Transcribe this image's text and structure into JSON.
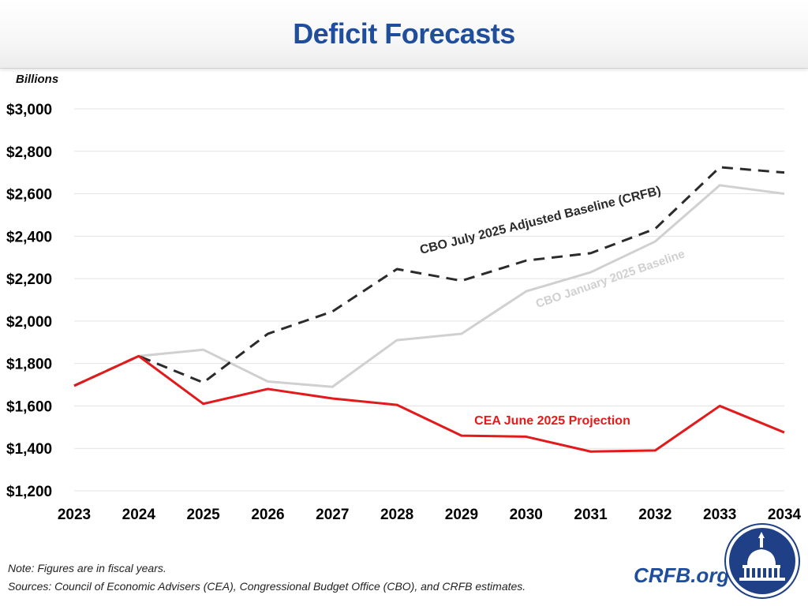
{
  "title": "Deficit Forecasts",
  "chart_data": {
    "type": "line",
    "title": "Deficit Forecasts",
    "ylabel": "Billions",
    "xlabel": "",
    "x": [
      2023,
      2024,
      2025,
      2026,
      2027,
      2028,
      2029,
      2030,
      2031,
      2032,
      2033,
      2034
    ],
    "x_tick_labels": [
      "2023",
      "2024",
      "2025",
      "2026",
      "2027",
      "2028",
      "2029",
      "2030",
      "2031",
      "2032",
      "2033",
      "2034"
    ],
    "ylim": [
      1200,
      3000
    ],
    "y_ticks": [
      1200,
      1400,
      1600,
      1800,
      2000,
      2200,
      2400,
      2600,
      2800,
      3000
    ],
    "y_tick_labels": [
      "$1,200",
      "$1,400",
      "$1,600",
      "$1,800",
      "$2,000",
      "$2,200",
      "$2,400",
      "$2,600",
      "$2,800",
      "$3,000"
    ],
    "grid": true,
    "series": [
      {
        "name": "CBO January 2025 Baseline",
        "color": "#d0d0d0",
        "style": "solid",
        "values": [
          1695,
          1835,
          1865,
          1715,
          1690,
          1910,
          1940,
          2140,
          2230,
          2375,
          2640,
          2600
        ]
      },
      {
        "name": "CBO July 2025 Adjusted Baseline (CRFB)",
        "color": "#2b2b2b",
        "style": "dashed",
        "values": [
          1695,
          1835,
          1710,
          1940,
          2045,
          2245,
          2190,
          2285,
          2320,
          2435,
          2725,
          2700
        ]
      },
      {
        "name": "CEA June 2025 Projection",
        "color": "#e31a1c",
        "style": "solid",
        "values": [
          1695,
          1835,
          1610,
          1680,
          1635,
          1605,
          1460,
          1455,
          1385,
          1390,
          1600,
          1475
        ]
      }
    ]
  },
  "footer": {
    "note": "Note: Figures are in fiscal years.",
    "sources": "Sources: Council of Economic Advisers (CEA), Congressional Budget Office (CBO), and CRFB estimates.",
    "brand": "CRFB.org"
  },
  "colors": {
    "title": "#1f4e9c",
    "brand": "#1f4e9c",
    "seal_bg": "#1f3f86"
  }
}
